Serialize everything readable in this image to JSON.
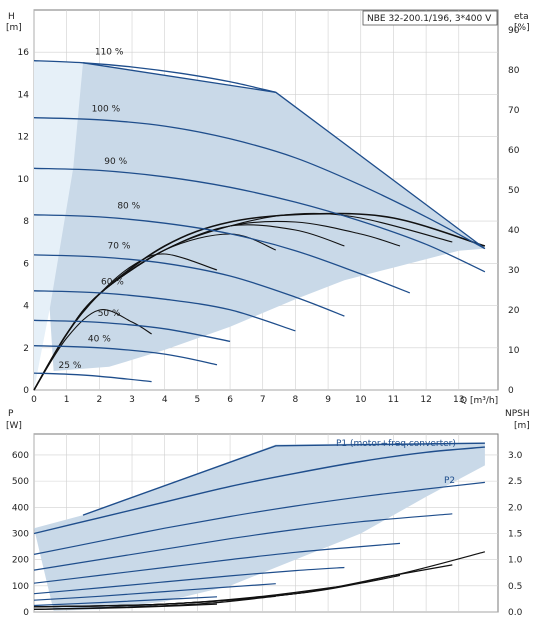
{
  "colors": {
    "pump_curve": "#1f4e8c",
    "area": "#c9d9e8",
    "area_light": "#e6f0f8",
    "eta": "#111111",
    "grid": "#d0d0d0"
  },
  "chart_data": [
    {
      "type": "line",
      "title": "NBE 32-200.1/196, 3*400 V",
      "xlabel": "Q [m³/h]",
      "ylabel_name": "H",
      "ylabel_unit": "[m]",
      "y2label_name": "eta",
      "y2label_unit": "[%]",
      "xlim": [
        0,
        14.2
      ],
      "ylim": [
        0,
        18
      ],
      "y2lim": [
        0,
        95
      ],
      "xticks": [
        0,
        1,
        2,
        3,
        4,
        5,
        6,
        7,
        8,
        9,
        10,
        11,
        12,
        13
      ],
      "yticks": [
        0,
        2,
        4,
        6,
        8,
        10,
        12,
        14,
        16
      ],
      "y2ticks": [
        0,
        10,
        20,
        30,
        40,
        50,
        60,
        70,
        80,
        90
      ],
      "grid": true,
      "envelope": {
        "x": [
          0,
          1.5,
          7.4,
          13.8,
          13.0,
          11.0,
          9.5,
          8.0,
          6.0,
          4.0,
          2.3,
          0.6
        ],
        "y": [
          15.6,
          15.5,
          14.1,
          6.7,
          6.6,
          5.8,
          5.2,
          4.3,
          3.0,
          1.9,
          1.1,
          0.9
        ]
      },
      "speed_curves": [
        {
          "label": "110 %",
          "x": [
            0,
            1.5,
            3,
            4.5,
            6,
            7.4
          ],
          "y": [
            15.6,
            15.5,
            15.3,
            15.0,
            14.6,
            14.1
          ]
        },
        {
          "label": "100 %",
          "x": [
            0,
            2,
            4,
            6,
            8,
            10,
            12,
            13.8
          ],
          "y": [
            12.9,
            12.8,
            12.5,
            11.9,
            11.0,
            9.7,
            8.2,
            6.7
          ]
        },
        {
          "label": "90 %",
          "x": [
            0,
            2,
            4,
            6,
            8,
            10,
            12,
            13.8
          ],
          "y": [
            10.5,
            10.4,
            10.1,
            9.6,
            8.9,
            8.0,
            6.9,
            5.6
          ]
        },
        {
          "label": "80 %",
          "x": [
            0,
            2,
            4,
            6,
            8,
            10,
            11.5
          ],
          "y": [
            8.3,
            8.2,
            7.9,
            7.4,
            6.6,
            5.5,
            4.6
          ]
        },
        {
          "label": "70 %",
          "x": [
            0,
            2,
            4,
            6,
            8,
            9.5
          ],
          "y": [
            6.4,
            6.3,
            6.0,
            5.4,
            4.4,
            3.5
          ]
        },
        {
          "label": "60 %",
          "x": [
            0,
            2,
            4,
            6,
            8
          ],
          "y": [
            4.7,
            4.6,
            4.3,
            3.8,
            2.8
          ]
        },
        {
          "label": "50 %",
          "x": [
            0,
            2,
            4,
            6
          ],
          "y": [
            3.3,
            3.2,
            2.9,
            2.3
          ]
        },
        {
          "label": "40 %",
          "x": [
            0,
            2,
            4,
            5.6
          ],
          "y": [
            2.1,
            2.0,
            1.7,
            1.2
          ]
        },
        {
          "label": "25 %",
          "x": [
            0,
            1,
            2,
            3.6
          ],
          "y": [
            0.8,
            0.75,
            0.65,
            0.4
          ]
        }
      ],
      "eta_curves": [
        {
          "x": [
            0,
            1,
            2,
            4,
            6,
            8.5,
            11,
            13.8
          ],
          "y": [
            0,
            14,
            24,
            36,
            42,
            44,
            43,
            36
          ]
        },
        {
          "x": [
            0,
            1,
            2,
            4,
            6,
            8,
            10,
            12.8
          ],
          "y": [
            0,
            14,
            24,
            35,
            41,
            44,
            43,
            37
          ]
        },
        {
          "x": [
            0,
            1,
            2,
            4,
            6,
            8,
            10,
            11.2
          ],
          "y": [
            0,
            14,
            24,
            35,
            41,
            42,
            39,
            36
          ]
        },
        {
          "x": [
            0,
            1,
            2,
            4,
            6,
            8,
            9.5
          ],
          "y": [
            0,
            14,
            24,
            35,
            41,
            40,
            36
          ]
        },
        {
          "x": [
            0,
            1,
            2,
            4,
            6,
            7.4
          ],
          "y": [
            0,
            14,
            24,
            35,
            39,
            35
          ]
        },
        {
          "x": [
            0,
            1,
            2,
            3,
            4,
            5.6
          ],
          "y": [
            0,
            14,
            24,
            31,
            34,
            30
          ]
        },
        {
          "x": [
            0,
            1,
            2,
            3,
            3.6
          ],
          "y": [
            0,
            13,
            20,
            17,
            14
          ]
        }
      ]
    },
    {
      "type": "line",
      "xlim": [
        0,
        14.2
      ],
      "ylim": [
        0,
        680
      ],
      "y2lim": [
        0,
        3.4
      ],
      "ylabel_name": "P",
      "ylabel_unit": "[W]",
      "y2label_name": "NPSH",
      "y2label_unit": "[m]",
      "yticks": [
        0,
        100,
        200,
        300,
        400,
        500,
        600
      ],
      "y2ticks": [
        "0.0",
        "0.5",
        "1.0",
        "1.5",
        "2.0",
        "2.5",
        "3.0"
      ],
      "grid": true,
      "series_labels": {
        "p1": "P1 (motor+freq.converter)",
        "p2": "P2"
      },
      "envelope": {
        "x": [
          0,
          1.5,
          7.4,
          13.8,
          13.8,
          12,
          10,
          8,
          6,
          4,
          2,
          0.6
        ],
        "y": [
          320,
          370,
          640,
          648,
          560,
          440,
          300,
          200,
          100,
          40,
          10,
          5
        ]
      },
      "power_curves": [
        {
          "x": [
            1.5,
            7.4,
            13.8
          ],
          "y": [
            370,
            635,
            645
          ]
        },
        {
          "x": [
            0,
            2,
            4,
            6,
            8,
            10,
            12,
            13.8
          ],
          "y": [
            300,
            360,
            420,
            480,
            530,
            575,
            610,
            630
          ]
        },
        {
          "x": [
            0,
            2,
            4,
            6,
            8,
            10,
            12,
            13.8
          ],
          "y": [
            220,
            270,
            320,
            365,
            405,
            440,
            470,
            495
          ]
        },
        {
          "x": [
            0,
            2,
            4,
            6,
            8,
            10,
            12.8
          ],
          "y": [
            160,
            200,
            240,
            280,
            315,
            345,
            375
          ]
        },
        {
          "x": [
            0,
            2,
            4,
            6,
            8,
            10,
            11.2
          ],
          "y": [
            110,
            140,
            170,
            200,
            228,
            250,
            262
          ]
        },
        {
          "x": [
            0,
            2,
            4,
            6,
            8,
            9.5
          ],
          "y": [
            70,
            92,
            115,
            138,
            158,
            170
          ]
        },
        {
          "x": [
            0,
            2,
            4,
            6,
            7.4
          ],
          "y": [
            45,
            60,
            78,
            96,
            108
          ]
        },
        {
          "x": [
            0,
            2,
            4,
            5.6
          ],
          "y": [
            25,
            36,
            48,
            58
          ]
        },
        {
          "x": [
            0,
            2,
            3.6
          ],
          "y": [
            10,
            16,
            22
          ]
        }
      ],
      "npsh_curves": [
        {
          "x": [
            0,
            4,
            8,
            11,
            13.8
          ],
          "y": [
            0.1,
            0.15,
            0.35,
            0.7,
            1.15
          ]
        },
        {
          "x": [
            0,
            4,
            8,
            11,
            12.8
          ],
          "y": [
            0.1,
            0.15,
            0.35,
            0.7,
            0.9
          ]
        },
        {
          "x": [
            0,
            4,
            8,
            10,
            11.2
          ],
          "y": [
            0.1,
            0.15,
            0.35,
            0.55,
            0.7
          ]
        },
        {
          "x": [
            0,
            4,
            7,
            9.5
          ],
          "y": [
            0.1,
            0.15,
            0.3,
            0.5
          ]
        },
        {
          "x": [
            0,
            2,
            4,
            5.6,
            7.4
          ],
          "y": [
            0.05,
            0.08,
            0.12,
            0.18,
            0.3
          ]
        },
        {
          "x": [
            0,
            2,
            3.6,
            5.6
          ],
          "y": [
            0.05,
            0.07,
            0.1,
            0.15
          ]
        }
      ]
    }
  ]
}
